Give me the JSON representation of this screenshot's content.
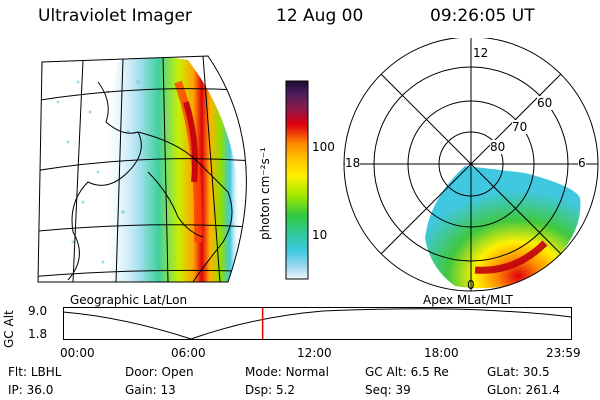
{
  "header": {
    "instrument": "Ultraviolet Imager",
    "date": "12 Aug 00",
    "time": "09:26:05 UT"
  },
  "colorbar": {
    "unit_label": "photon cm⁻²s⁻¹",
    "ticks": [
      "100",
      "10"
    ],
    "colors": [
      "#1b0a2e",
      "#4a1c5c",
      "#8a1a4a",
      "#b0002a",
      "#e00010",
      "#ff4a00",
      "#ff8c00",
      "#ffc800",
      "#fff000",
      "#c8f000",
      "#80e000",
      "#30c840",
      "#30c8a0",
      "#40c8e0",
      "#a0d8f0",
      "#e8f0f8"
    ]
  },
  "left_map": {
    "label": "Geographic Lat/Lon"
  },
  "right_map": {
    "label": "Apex MLat/MLT",
    "mlt_labels": {
      "top": "12",
      "left": "18",
      "right": "6",
      "bottom": "0"
    },
    "lat_labels": [
      "60",
      "70",
      "80"
    ]
  },
  "altitude_plot": {
    "ylabel": "GC Alt",
    "yticks": [
      "9.0",
      "1.8"
    ],
    "xticks": [
      "00:00",
      "06:00",
      "12:00",
      "18:00",
      "23:59"
    ],
    "current_time_fraction": 0.393
  },
  "status": {
    "row1": [
      {
        "key": "Flt:",
        "value": "LBHL"
      },
      {
        "key": "Door:",
        "value": "Open"
      },
      {
        "key": "Mode:",
        "value": "Normal"
      },
      {
        "key": "GC Alt:",
        "value": "6.5 Re"
      },
      {
        "key": "GLat:",
        "value": "30.5"
      }
    ],
    "row2": [
      {
        "key": "IP:",
        "value": "36.0"
      },
      {
        "key": "Gain:",
        "value": "13"
      },
      {
        "key": "Dsp:",
        "value": "5.2"
      },
      {
        "key": "Seq:",
        "value": "39"
      },
      {
        "key": "GLon:",
        "value": "261.4"
      }
    ]
  }
}
